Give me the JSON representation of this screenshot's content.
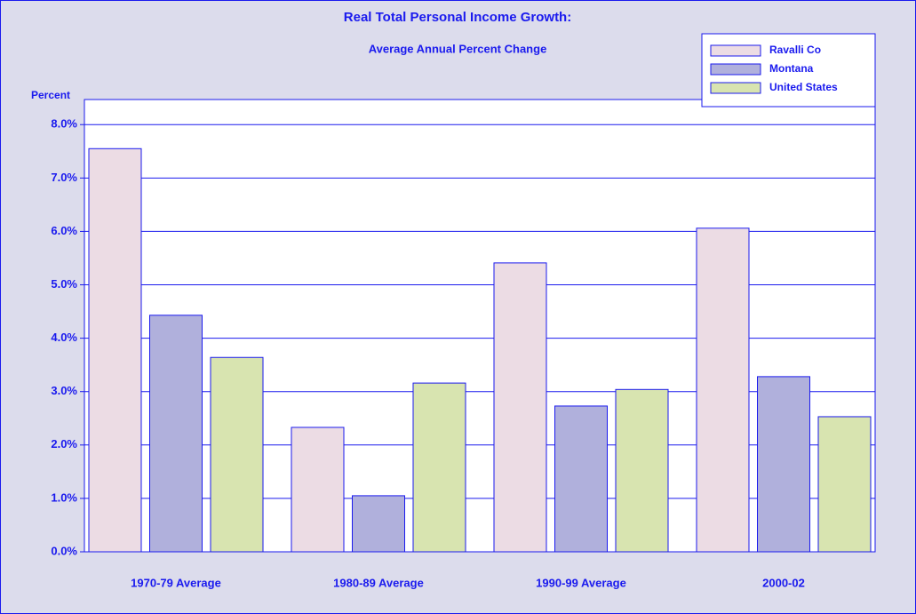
{
  "chart_data": {
    "type": "bar",
    "title": "Real Total Personal Income Growth:",
    "subtitle": "Average Annual Percent Change",
    "y_label": "Percent",
    "categories": [
      "1970-79 Average",
      "1980-89 Average",
      "1990-99 Average",
      "2000-02"
    ],
    "series": [
      {
        "name": "Ravalli Co",
        "color": "#ecdce4",
        "values": [
          7.55,
          2.33,
          5.41,
          6.06
        ]
      },
      {
        "name": "Montana",
        "color": "#b0b0dc",
        "values": [
          4.43,
          1.05,
          2.73,
          3.28
        ]
      },
      {
        "name": "United States",
        "color": "#d8e4b0",
        "values": [
          3.64,
          3.16,
          3.04,
          2.53
        ]
      }
    ],
    "ylim": [
      0,
      8.47
    ],
    "yticks": [
      {
        "value": 0,
        "label": "0.0%"
      },
      {
        "value": 1,
        "label": "1.0%"
      },
      {
        "value": 2,
        "label": "2.0%"
      },
      {
        "value": 3,
        "label": "3.0%"
      },
      {
        "value": 4,
        "label": "4.0%"
      },
      {
        "value": 5,
        "label": "5.0%"
      },
      {
        "value": 6,
        "label": "6.0%"
      },
      {
        "value": 7,
        "label": "7.0%"
      },
      {
        "value": 8,
        "label": "8.0%"
      }
    ],
    "grid": true,
    "legend": "top-right"
  }
}
